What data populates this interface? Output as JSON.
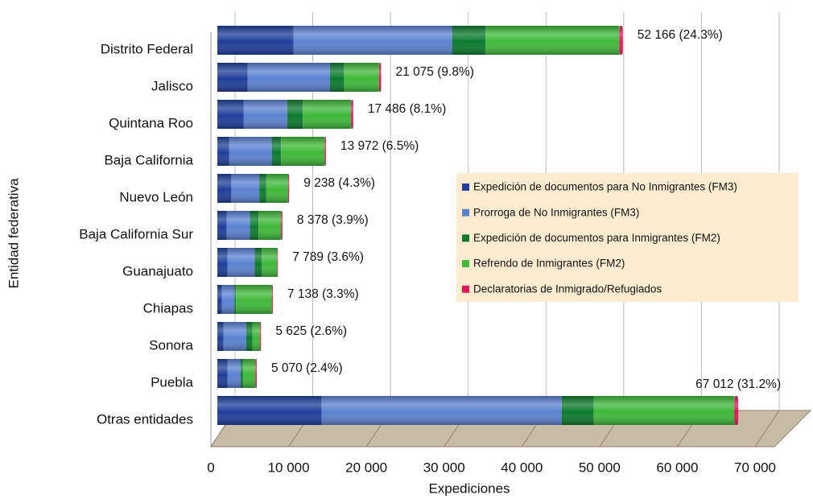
{
  "chart_data": {
    "type": "bar",
    "orientation": "horizontal",
    "stacked": true,
    "x_label": "Expediciones",
    "y_label": "Entidad federativa",
    "categories": [
      "Distrito Federal",
      "Jalisco",
      "Quintana Roo",
      "Baja California",
      "Nuevo León",
      "Baja California Sur",
      "Guanajuato",
      "Chiapas",
      "Sonora",
      "Puebla",
      "Otras entidades"
    ],
    "series": [
      {
        "name": "Expedición de documentos para No Inmigrantes (FM3)",
        "color": "#1f3f9b",
        "values": [
          9800,
          3900,
          3400,
          1500,
          1800,
          1200,
          1300,
          600,
          800,
          1300,
          13400
        ]
      },
      {
        "name": "Prorroga de No Inmigrantes (FM3)",
        "color": "#5b82d1",
        "values": [
          20400,
          10600,
          5600,
          5500,
          3600,
          3000,
          3500,
          1600,
          2900,
          1700,
          30900
        ]
      },
      {
        "name": "Expedición de documentos para Inmigrantes (FM2)",
        "color": "#0d7a2e",
        "values": [
          4300,
          1800,
          2000,
          1200,
          900,
          1100,
          900,
          200,
          800,
          300,
          4100
        ]
      },
      {
        "name": "Refrendo de Inmigrantes (FM2)",
        "color": "#3fb83a",
        "values": [
          17200,
          4500,
          6200,
          5600,
          2800,
          2900,
          2000,
          4600,
          1000,
          1600,
          18100
        ]
      },
      {
        "name": "Declaratorias de Inmigrado/Refugiados",
        "color": "#e0185a",
        "values": [
          466,
          275,
          286,
          172,
          138,
          178,
          89,
          138,
          125,
          170,
          512
        ]
      }
    ],
    "totals": [
      52166,
      21075,
      17486,
      13972,
      9238,
      8378,
      7789,
      7138,
      5625,
      5070,
      67012
    ],
    "total_labels": [
      "52 166 (24.3%)",
      "21 075 (9.8%)",
      "17 486 (8.1%)",
      "13 972 (6.5%)",
      "9 238 (4.3%)",
      "8 378 (3.9%)",
      "7 789 (3.6%)",
      "7 138 (3.3%)",
      "5 625 (2.6%)",
      "5 070 (2.4%)",
      "67 012 (31.2%)"
    ],
    "xlim": [
      0,
      70000
    ],
    "xticks": [
      0,
      {
        "value": 10000,
        "label": "10 000"
      },
      {
        "value": 20000,
        "label": "20 000"
      },
      {
        "value": 30000,
        "label": "30 000"
      },
      {
        "value": 40000,
        "label": "40 000"
      },
      {
        "value": 50000,
        "label": "50 000"
      },
      {
        "value": 60000,
        "label": "60 000"
      },
      {
        "value": 70000,
        "label": "70 000"
      }
    ],
    "grid": true,
    "legend_position": "right"
  }
}
